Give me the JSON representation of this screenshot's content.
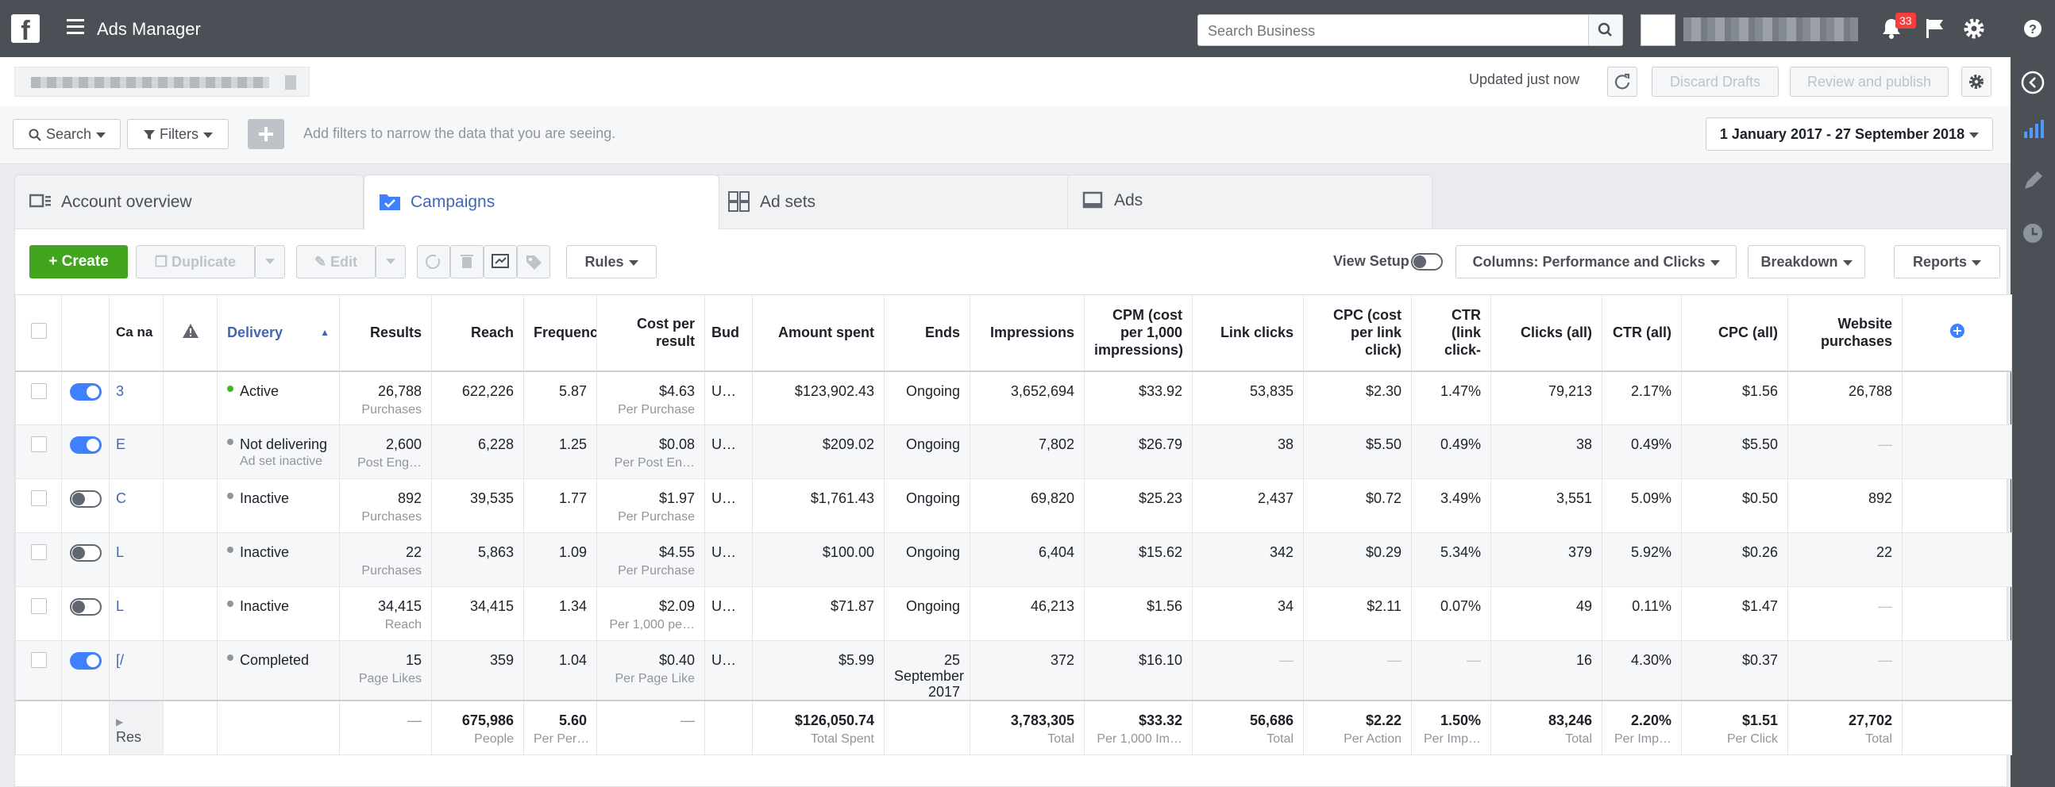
{
  "app": {
    "title": "Ads Manager",
    "logo": "f"
  },
  "topbar": {
    "search_placeholder": "Search Business",
    "notifications_count": "33"
  },
  "account_bar": {
    "updated": "Updated just now",
    "discard_label": "Discard Drafts",
    "review_label": "Review and publish"
  },
  "filters": {
    "search_label": "Search",
    "filters_label": "Filters",
    "hint": "Add filters to narrow the data that you are seeing.",
    "date_range": "1 January 2017 - 27 September 2018"
  },
  "tabs": [
    {
      "label": "Account overview"
    },
    {
      "label": "Campaigns"
    },
    {
      "label": "Ad sets"
    },
    {
      "label": "Ads"
    }
  ],
  "toolbar": {
    "create": "Create",
    "duplicate": "Duplicate",
    "edit": "Edit",
    "rules": "Rules",
    "view_setup": "View Setup",
    "columns": "Columns: Performance and Clicks",
    "breakdown": "Breakdown",
    "reports": "Reports"
  },
  "columns": {
    "name": "Ca na",
    "delivery": "Delivery",
    "results": "Results",
    "reach": "Reach",
    "frequency": "Frequenc",
    "cost_per_result": "Cost per result",
    "budget": "Bud",
    "amount_spent": "Amount spent",
    "ends": "Ends",
    "impressions": "Impressions",
    "cpm": "CPM (cost per 1,000 impressions)",
    "link_clicks": "Link clicks",
    "cpc_link": "CPC (cost per link click)",
    "ctr_link": "CTR (link click-",
    "clicks_all": "Clicks (all)",
    "ctr_all": "CTR (all)",
    "cpc_all": "CPC (all)",
    "website_purchases": "Website purchases"
  },
  "rows": [
    {
      "on": true,
      "name": "3",
      "delivery": "Active",
      "delivery_sub": "",
      "delivery_color": "#42b72a",
      "results": "26,788",
      "results_sub": "Purchases",
      "reach": "622,226",
      "frequency": "5.87",
      "cpr": "$4.63",
      "cpr_sub": "Per Purchase",
      "budget": "U…",
      "spent": "$123,902.43",
      "ends": "Ongoing",
      "impressions": "3,652,694",
      "cpm": "$33.92",
      "link_clicks": "53,835",
      "cpc_link": "$2.30",
      "ctr_link": "1.47%",
      "clicks_all": "79,213",
      "ctr_all": "2.17%",
      "cpc_all": "$1.56",
      "purchases": "26,788"
    },
    {
      "on": true,
      "name": "E",
      "delivery": "Not delivering",
      "delivery_sub": "Ad set inactive",
      "delivery_color": "#90949c",
      "results": "2,600",
      "results_sub": "Post Eng…",
      "reach": "6,228",
      "frequency": "1.25",
      "cpr": "$0.08",
      "cpr_sub": "Per Post En…",
      "budget": "U…",
      "spent": "$209.02",
      "ends": "Ongoing",
      "impressions": "7,802",
      "cpm": "$26.79",
      "link_clicks": "38",
      "cpc_link": "$5.50",
      "ctr_link": "0.49%",
      "clicks_all": "38",
      "ctr_all": "0.49%",
      "cpc_all": "$5.50",
      "purchases": "—"
    },
    {
      "on": false,
      "name": "C",
      "delivery": "Inactive",
      "delivery_sub": "",
      "delivery_color": "#90949c",
      "results": "892",
      "results_sub": "Purchases",
      "reach": "39,535",
      "frequency": "1.77",
      "cpr": "$1.97",
      "cpr_sub": "Per Purchase",
      "budget": "U…",
      "spent": "$1,761.43",
      "ends": "Ongoing",
      "impressions": "69,820",
      "cpm": "$25.23",
      "link_clicks": "2,437",
      "cpc_link": "$0.72",
      "ctr_link": "3.49%",
      "clicks_all": "3,551",
      "ctr_all": "5.09%",
      "cpc_all": "$0.50",
      "purchases": "892"
    },
    {
      "on": false,
      "name": "L",
      "delivery": "Inactive",
      "delivery_sub": "",
      "delivery_color": "#90949c",
      "results": "22",
      "results_sub": "Purchases",
      "reach": "5,863",
      "frequency": "1.09",
      "cpr": "$4.55",
      "cpr_sub": "Per Purchase",
      "budget": "U…",
      "spent": "$100.00",
      "ends": "Ongoing",
      "impressions": "6,404",
      "cpm": "$15.62",
      "link_clicks": "342",
      "cpc_link": "$0.29",
      "ctr_link": "5.34%",
      "clicks_all": "379",
      "ctr_all": "5.92%",
      "cpc_all": "$0.26",
      "purchases": "22"
    },
    {
      "on": false,
      "name": "L",
      "delivery": "Inactive",
      "delivery_sub": "",
      "delivery_color": "#90949c",
      "results": "34,415",
      "results_sub": "Reach",
      "reach": "34,415",
      "frequency": "1.34",
      "cpr": "$2.09",
      "cpr_sub": "Per 1,000 pe…",
      "budget": "U…",
      "spent": "$71.87",
      "ends": "Ongoing",
      "impressions": "46,213",
      "cpm": "$1.56",
      "link_clicks": "34",
      "cpc_link": "$2.11",
      "ctr_link": "0.07%",
      "clicks_all": "49",
      "ctr_all": "0.11%",
      "cpc_all": "$1.47",
      "purchases": "—"
    },
    {
      "on": true,
      "name": "[/",
      "delivery": "Completed",
      "delivery_sub": "",
      "delivery_color": "#90949c",
      "results": "15",
      "results_sub": "Page Likes",
      "reach": "359",
      "frequency": "1.04",
      "cpr": "$0.40",
      "cpr_sub": "Per Page Like",
      "budget": "U…",
      "spent": "$5.99",
      "ends": "25 September 2017",
      "impressions": "372",
      "cpm": "$16.10",
      "link_clicks": "—",
      "cpc_link": "—",
      "ctr_link": "—",
      "clicks_all": "16",
      "ctr_all": "4.30%",
      "cpc_all": "$0.37",
      "purchases": "—"
    }
  ],
  "totals": {
    "name": "Res",
    "results": "—",
    "reach": "675,986",
    "reach_sub": "People",
    "frequency": "5.60",
    "frequency_sub": "Per Per…",
    "cpr": "—",
    "spent": "$126,050.74",
    "spent_sub": "Total Spent",
    "impressions": "3,783,305",
    "impressions_sub": "Total",
    "cpm": "$33.32",
    "cpm_sub": "Per 1,000 Im…",
    "link_clicks": "56,686",
    "link_clicks_sub": "Total",
    "cpc_link": "$2.22",
    "cpc_link_sub": "Per Action",
    "ctr_link": "1.50%",
    "ctr_link_sub": "Per Imp…",
    "clicks_all": "83,246",
    "clicks_all_sub": "Total",
    "ctr_all": "2.20%",
    "ctr_all_sub": "Per Imp…",
    "cpc_all": "$1.51",
    "cpc_all_sub": "Per Click",
    "purchases": "27,702",
    "purchases_sub": "Total"
  },
  "colors": {
    "topbar": "#4b4f56",
    "accent": "#4267b2",
    "create_green": "#42a51e",
    "toggle_on": "#4080ff",
    "active_green": "#42b72a"
  }
}
